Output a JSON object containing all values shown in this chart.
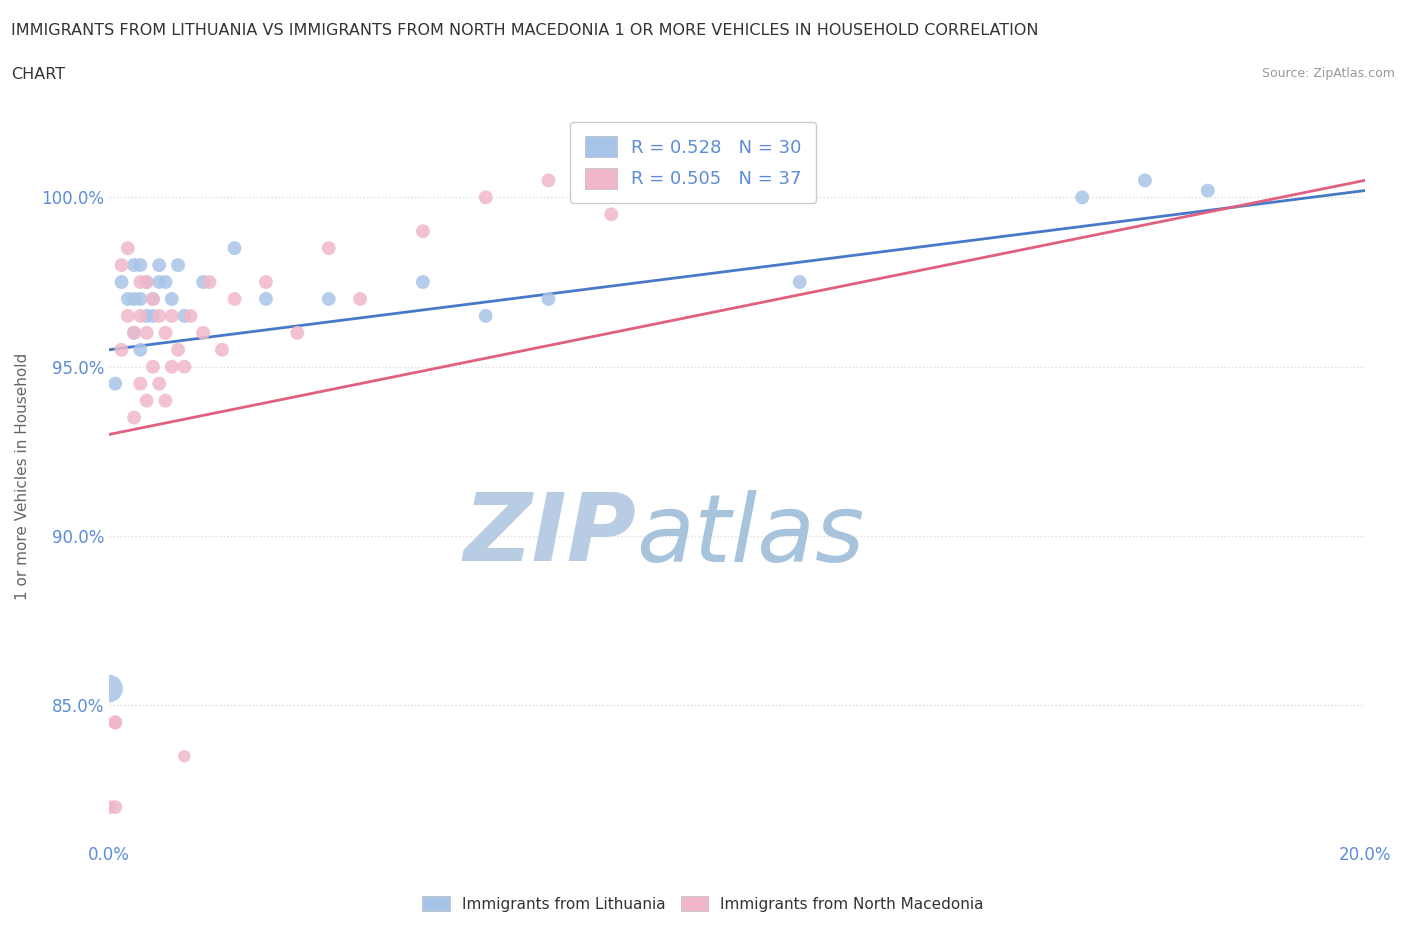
{
  "title_line1": "IMMIGRANTS FROM LITHUANIA VS IMMIGRANTS FROM NORTH MACEDONIA 1 OR MORE VEHICLES IN HOUSEHOLD CORRELATION",
  "title_line2": "CHART",
  "source": "Source: ZipAtlas.com",
  "ylabel": "1 or more Vehicles in Household",
  "x_min": 0.0,
  "x_max": 0.2,
  "y_min": 81.0,
  "y_max": 102.5,
  "x_ticks": [
    0.0,
    0.02,
    0.04,
    0.06,
    0.08,
    0.1,
    0.12,
    0.14,
    0.16,
    0.18,
    0.2
  ],
  "x_tick_labels": [
    "0.0%",
    "",
    "",
    "",
    "",
    "",
    "",
    "",
    "",
    "",
    "20.0%"
  ],
  "y_ticks": [
    85.0,
    90.0,
    95.0,
    100.0
  ],
  "y_tick_labels": [
    "85.0%",
    "90.0%",
    "95.0%",
    "100.0%"
  ],
  "R_lithuania": 0.528,
  "N_lithuania": 30,
  "R_north_macedonia": 0.505,
  "N_north_macedonia": 37,
  "color_lithuania": "#A8C4E8",
  "color_north_macedonia": "#F0B8C8",
  "color_lithuania_line": "#4878C8",
  "color_north_macedonia_line": "#E06080",
  "legend_label_lithuania": "Immigrants from Lithuania",
  "legend_label_north_macedonia": "Immigrants from North Macedonia",
  "watermark_zip": "ZIP",
  "watermark_atlas": "atlas",
  "watermark_color_zip": "#B8CCE4",
  "watermark_color_atlas": "#A8C4DC",
  "grid_color": "#DCDCDC",
  "grid_style": "dotted",
  "background_color": "#FFFFFF",
  "lit_line_x0": 0.0,
  "lit_line_y0": 95.5,
  "lit_line_x1": 0.2,
  "lit_line_y1": 100.2,
  "mac_line_x0": 0.0,
  "mac_line_y0": 93.0,
  "mac_line_x1": 0.2,
  "mac_line_y1": 100.5,
  "lithuania_x": [
    0.001,
    0.002,
    0.003,
    0.004,
    0.004,
    0.004,
    0.005,
    0.005,
    0.005,
    0.006,
    0.006,
    0.007,
    0.007,
    0.008,
    0.008,
    0.009,
    0.01,
    0.011,
    0.012,
    0.015,
    0.02,
    0.025,
    0.035,
    0.05,
    0.06,
    0.07,
    0.11,
    0.155,
    0.165,
    0.175
  ],
  "lithuania_y": [
    94.5,
    97.5,
    97.0,
    96.0,
    97.0,
    98.0,
    95.5,
    97.0,
    98.0,
    96.5,
    97.5,
    96.5,
    97.0,
    97.5,
    98.0,
    97.5,
    97.0,
    98.0,
    96.5,
    97.5,
    98.5,
    97.0,
    97.0,
    97.5,
    96.5,
    97.0,
    97.5,
    100.0,
    100.5,
    100.2
  ],
  "north_macedonia_x": [
    0.001,
    0.001,
    0.002,
    0.002,
    0.003,
    0.003,
    0.004,
    0.004,
    0.005,
    0.005,
    0.005,
    0.006,
    0.006,
    0.006,
    0.007,
    0.007,
    0.008,
    0.008,
    0.009,
    0.009,
    0.01,
    0.01,
    0.011,
    0.012,
    0.013,
    0.015,
    0.016,
    0.018,
    0.02,
    0.025,
    0.03,
    0.035,
    0.04,
    0.05,
    0.06,
    0.07,
    0.08
  ],
  "north_macedonia_y": [
    82.0,
    84.5,
    95.5,
    98.0,
    96.5,
    98.5,
    93.5,
    96.0,
    94.5,
    96.5,
    97.5,
    94.0,
    96.0,
    97.5,
    95.0,
    97.0,
    94.5,
    96.5,
    94.0,
    96.0,
    95.0,
    96.5,
    95.5,
    95.0,
    96.5,
    96.0,
    97.5,
    95.5,
    97.0,
    97.5,
    96.0,
    98.5,
    97.0,
    99.0,
    100.0,
    100.5,
    99.5
  ],
  "lit_outlier_x": [
    0.0
  ],
  "lit_outlier_y": [
    85.5
  ],
  "lit_outlier_size": 400,
  "mac_outlier1_x": [
    0.001
  ],
  "mac_outlier1_y": [
    84.5
  ],
  "mac_outlier2_x": [
    0.012
  ],
  "mac_outlier2_y": [
    83.5
  ],
  "mac_outlier3_x": [
    0.0
  ],
  "mac_outlier3_y": [
    82.0
  ]
}
